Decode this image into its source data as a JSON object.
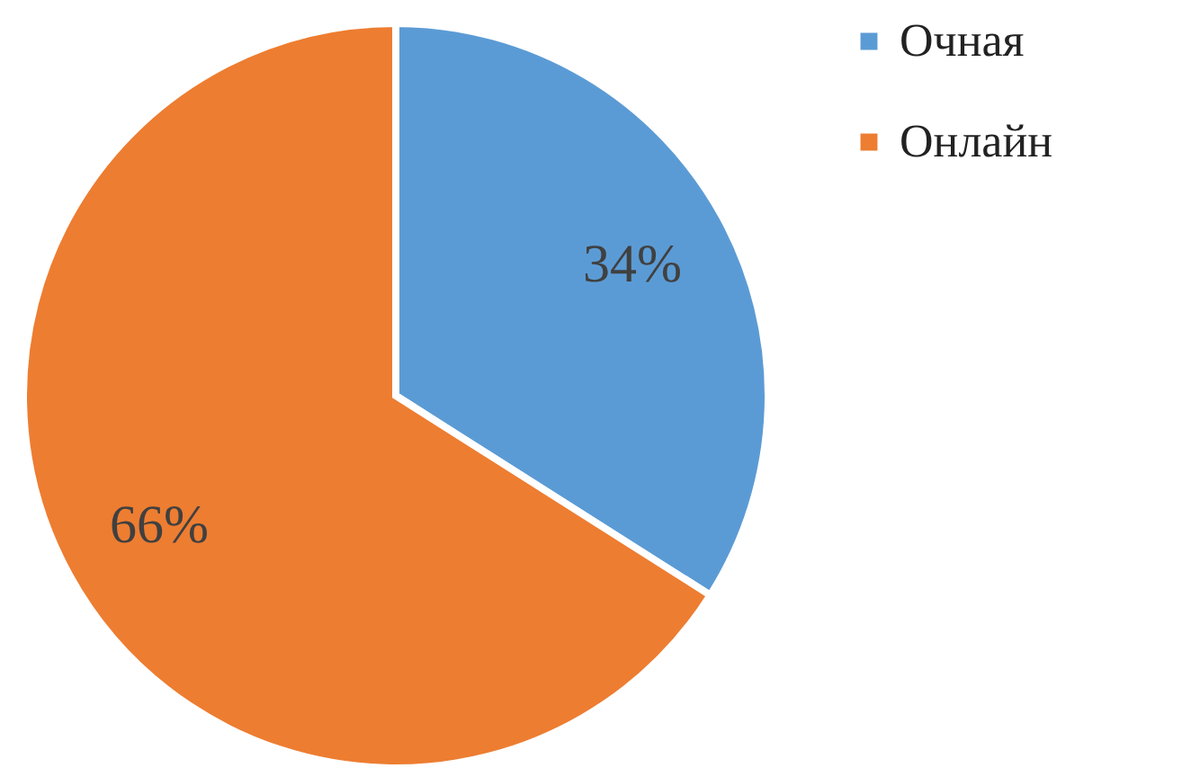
{
  "chart_data": {
    "type": "pie",
    "categories": [
      "Очная",
      "Онлайн"
    ],
    "values": [
      34,
      66
    ],
    "colors": [
      "#5b9bd5",
      "#ed7d31"
    ],
    "value_labels": [
      "34%",
      "66%"
    ],
    "legend": "right"
  }
}
